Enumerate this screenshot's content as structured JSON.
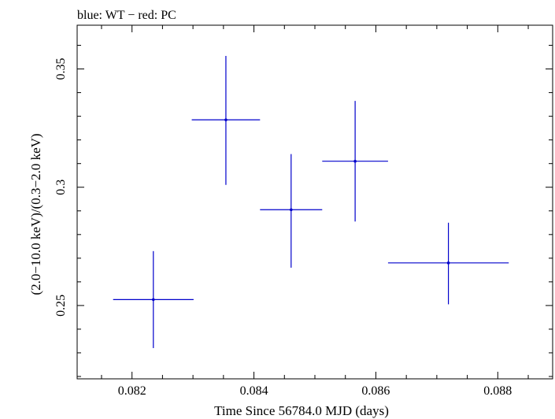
{
  "chart_data": {
    "type": "scatter",
    "title": "blue: WT − red: PC",
    "xlabel": "Time Since 56784.0 MJD (days)",
    "ylabel": "(2.0−10.0 keV)/(0.3−2.0 keV)",
    "xlim": [
      0.0811,
      0.0889
    ],
    "ylim": [
      0.219,
      0.3685
    ],
    "x_ticks": [
      0.082,
      0.084,
      0.086,
      0.088
    ],
    "x_tick_labels": [
      "0.082",
      "0.084",
      "0.086",
      "0.088"
    ],
    "y_ticks": [
      0.25,
      0.3,
      0.35
    ],
    "y_tick_labels": [
      "0.25",
      "0.3",
      "0.35"
    ],
    "grid": false,
    "series": [
      {
        "color": "#0000cc",
        "points": [
          {
            "x": 0.08235,
            "y": 0.2525,
            "xerr_lo": 0.00066,
            "xerr_hi": 0.00066,
            "yerr_lo": 0.0205,
            "yerr_hi": 0.0205
          },
          {
            "x": 0.08354,
            "y": 0.3285,
            "xerr_lo": 0.00056,
            "xerr_hi": 0.00056,
            "yerr_lo": 0.0275,
            "yerr_hi": 0.027
          },
          {
            "x": 0.08461,
            "y": 0.2905,
            "xerr_lo": 0.00051,
            "xerr_hi": 0.00051,
            "yerr_lo": 0.0245,
            "yerr_hi": 0.0235
          },
          {
            "x": 0.08566,
            "y": 0.311,
            "xerr_lo": 0.00054,
            "xerr_hi": 0.00054,
            "yerr_lo": 0.0255,
            "yerr_hi": 0.0255
          },
          {
            "x": 0.08719,
            "y": 0.268,
            "xerr_lo": 0.00099,
            "xerr_hi": 0.00099,
            "yerr_lo": 0.0175,
            "yerr_hi": 0.017
          }
        ]
      }
    ]
  }
}
